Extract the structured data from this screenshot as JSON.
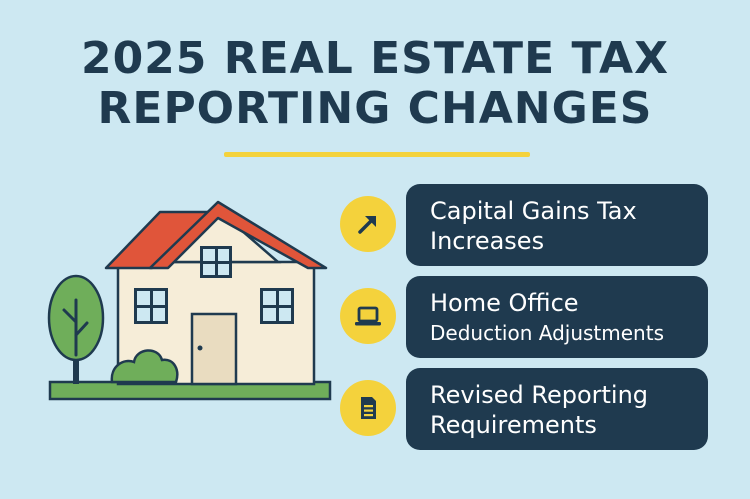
{
  "title": {
    "line1": "2025 REAL ESTATE TAX",
    "line2": "REPORTING CHANGES"
  },
  "items": [
    {
      "icon": "arrow-up-right-icon",
      "line1": "Capital Gains Tax",
      "line2": "Increases"
    },
    {
      "icon": "laptop-icon",
      "line1": "Home Office",
      "line2": "Deduction Adjustments"
    },
    {
      "icon": "document-icon",
      "line1": "Revised Reporting",
      "line2": "Requirements"
    }
  ],
  "colors": {
    "background": "#cde8f2",
    "navy": "#1f3a4f",
    "accent_yellow": "#f4d23c",
    "roof": "#e0553a",
    "wall": "#f6edd8",
    "green": "#6fae5a"
  }
}
